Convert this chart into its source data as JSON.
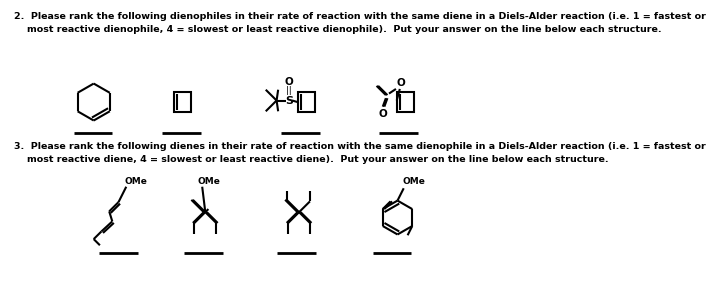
{
  "background_color": "#ffffff",
  "text_color": "#000000",
  "question2_text": "2.  Please rank the following dienophiles in their rate of reaction with the same diene in a Diels-Alder reaction (i.e. 1 = fastest or\n    most reactive dienophile, 4 = slowest or least reactive dienophile).  Put your answer on the line below each structure.",
  "question3_text": "3.  Please rank the following dienes in their rate of reaction with the same dienophile in a Diels-Alder reaction (i.e. 1 = fastest or\n    most reactive diene, 4 = slowest or least reactive diene).  Put your answer on the line below each structure.",
  "font_size_text": 6.8,
  "font_size_label": 6.5,
  "lw_struct": 1.5,
  "lw_ans": 2.0
}
